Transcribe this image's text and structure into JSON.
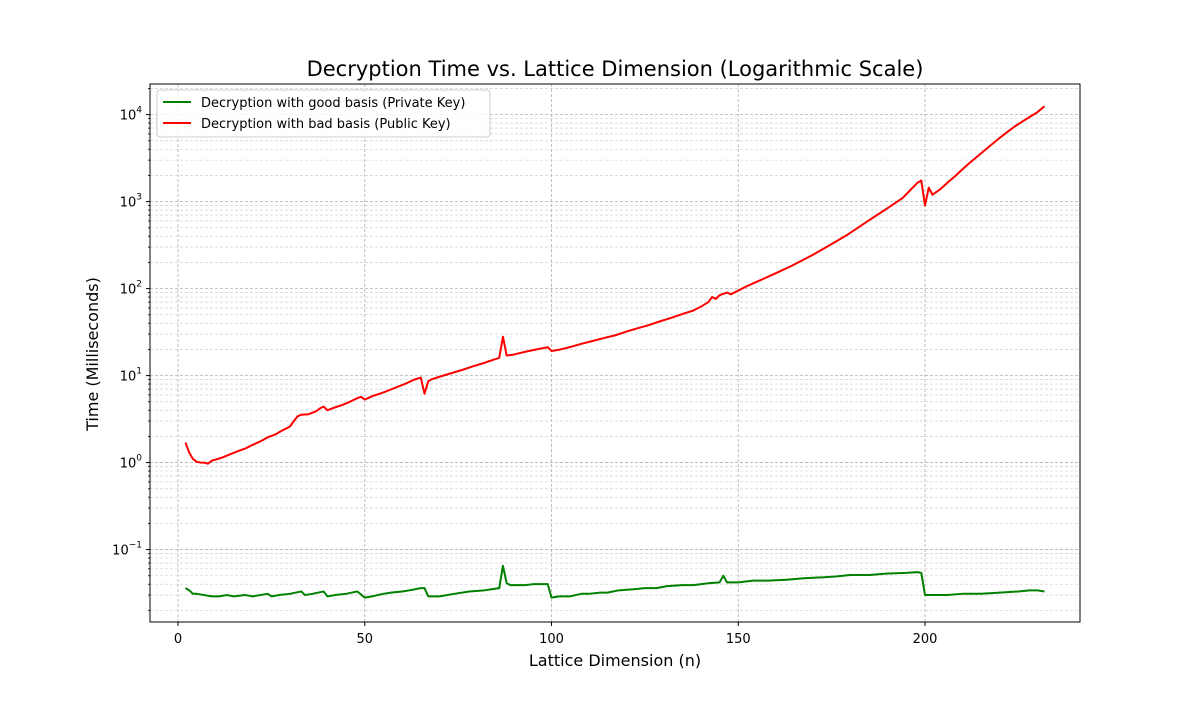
{
  "chart_data": {
    "type": "line",
    "title": "Decryption Time vs. Lattice Dimension (Logarithmic Scale)",
    "xlabel": "Lattice Dimension (n)",
    "ylabel": "Time (Milliseconds)",
    "xscale": "linear",
    "yscale": "log",
    "xlim": [
      -7.5,
      241.5
    ],
    "ylim": [
      0.0147,
      22500
    ],
    "xticks": [
      0,
      50,
      100,
      150,
      200
    ],
    "yticks": [
      {
        "value": 0.1,
        "base": "10",
        "exp": "−1"
      },
      {
        "value": 1,
        "base": "10",
        "exp": "0"
      },
      {
        "value": 10,
        "base": "10",
        "exp": "1"
      },
      {
        "value": 100,
        "base": "10",
        "exp": "2"
      },
      {
        "value": 1000,
        "base": "10",
        "exp": "3"
      },
      {
        "value": 10000,
        "base": "10",
        "exp": "4"
      }
    ],
    "grid": true,
    "legend_position": "upper-left",
    "series": [
      {
        "name": "Decryption with good basis (Private Key)",
        "color": "#008000",
        "points": [
          [
            2,
            0.036
          ],
          [
            3,
            0.034
          ],
          [
            4,
            0.031
          ],
          [
            5,
            0.031
          ],
          [
            7,
            0.03
          ],
          [
            9,
            0.029
          ],
          [
            11,
            0.029
          ],
          [
            13,
            0.03
          ],
          [
            15,
            0.029
          ],
          [
            18,
            0.03
          ],
          [
            20,
            0.029
          ],
          [
            22,
            0.03
          ],
          [
            24,
            0.031
          ],
          [
            25,
            0.029
          ],
          [
            27,
            0.03
          ],
          [
            30,
            0.031
          ],
          [
            33,
            0.033
          ],
          [
            34,
            0.03
          ],
          [
            36,
            0.031
          ],
          [
            39,
            0.033
          ],
          [
            40,
            0.029
          ],
          [
            42,
            0.03
          ],
          [
            45,
            0.031
          ],
          [
            48,
            0.033
          ],
          [
            50,
            0.028
          ],
          [
            52,
            0.029
          ],
          [
            55,
            0.031
          ],
          [
            57,
            0.032
          ],
          [
            60,
            0.033
          ],
          [
            62,
            0.034
          ],
          [
            65,
            0.036
          ],
          [
            66,
            0.036
          ],
          [
            67,
            0.029
          ],
          [
            70,
            0.029
          ],
          [
            74,
            0.031
          ],
          [
            78,
            0.033
          ],
          [
            82,
            0.034
          ],
          [
            84,
            0.035
          ],
          [
            86,
            0.036
          ],
          [
            87,
            0.065
          ],
          [
            88,
            0.041
          ],
          [
            89,
            0.039
          ],
          [
            91,
            0.039
          ],
          [
            93,
            0.039
          ],
          [
            95,
            0.04
          ],
          [
            98,
            0.04
          ],
          [
            99,
            0.04
          ],
          [
            100,
            0.028
          ],
          [
            102,
            0.029
          ],
          [
            105,
            0.029
          ],
          [
            108,
            0.031
          ],
          [
            110,
            0.031
          ],
          [
            113,
            0.032
          ],
          [
            115,
            0.032
          ],
          [
            118,
            0.034
          ],
          [
            122,
            0.035
          ],
          [
            125,
            0.036
          ],
          [
            128,
            0.036
          ],
          [
            131,
            0.038
          ],
          [
            135,
            0.039
          ],
          [
            138,
            0.039
          ],
          [
            142,
            0.041
          ],
          [
            145,
            0.042
          ],
          [
            146,
            0.05
          ],
          [
            147,
            0.042
          ],
          [
            150,
            0.042
          ],
          [
            154,
            0.044
          ],
          [
            158,
            0.044
          ],
          [
            163,
            0.045
          ],
          [
            168,
            0.047
          ],
          [
            173,
            0.048
          ],
          [
            176,
            0.049
          ],
          [
            180,
            0.051
          ],
          [
            185,
            0.051
          ],
          [
            190,
            0.053
          ],
          [
            195,
            0.054
          ],
          [
            198,
            0.055
          ],
          [
            199,
            0.054
          ],
          [
            200,
            0.03
          ],
          [
            203,
            0.03
          ],
          [
            206,
            0.03
          ],
          [
            210,
            0.031
          ],
          [
            215,
            0.031
          ],
          [
            220,
            0.032
          ],
          [
            225,
            0.033
          ],
          [
            228,
            0.034
          ],
          [
            230,
            0.034
          ],
          [
            232,
            0.033
          ]
        ]
      },
      {
        "name": "Decryption with bad basis (Public Key)",
        "color": "#ff0000",
        "points": [
          [
            2,
            1.7
          ],
          [
            3,
            1.3
          ],
          [
            4,
            1.1
          ],
          [
            5,
            1.02
          ],
          [
            6,
            1.0
          ],
          [
            7,
            1.0
          ],
          [
            8,
            0.97
          ],
          [
            9,
            1.05
          ],
          [
            10,
            1.08
          ],
          [
            12,
            1.15
          ],
          [
            14,
            1.25
          ],
          [
            16,
            1.35
          ],
          [
            18,
            1.45
          ],
          [
            20,
            1.6
          ],
          [
            22,
            1.75
          ],
          [
            24,
            1.95
          ],
          [
            26,
            2.1
          ],
          [
            28,
            2.35
          ],
          [
            30,
            2.6
          ],
          [
            31,
            3.0
          ],
          [
            32,
            3.4
          ],
          [
            33,
            3.55
          ],
          [
            35,
            3.6
          ],
          [
            37,
            3.9
          ],
          [
            38,
            4.2
          ],
          [
            39,
            4.4
          ],
          [
            40,
            4.0
          ],
          [
            42,
            4.3
          ],
          [
            44,
            4.6
          ],
          [
            46,
            5.0
          ],
          [
            48,
            5.5
          ],
          [
            49,
            5.7
          ],
          [
            50,
            5.3
          ],
          [
            52,
            5.8
          ],
          [
            55,
            6.4
          ],
          [
            58,
            7.2
          ],
          [
            61,
            8.1
          ],
          [
            63,
            8.9
          ],
          [
            65,
            9.5
          ],
          [
            66,
            6.2
          ],
          [
            67,
            8.6
          ],
          [
            68,
            9.1
          ],
          [
            70,
            9.7
          ],
          [
            73,
            10.6
          ],
          [
            76,
            11.6
          ],
          [
            79,
            12.8
          ],
          [
            82,
            14.0
          ],
          [
            84,
            15.0
          ],
          [
            85,
            15.5
          ],
          [
            86,
            16.0
          ],
          [
            87,
            28.0
          ],
          [
            88,
            17.0
          ],
          [
            90,
            17.5
          ],
          [
            93,
            18.8
          ],
          [
            96,
            20.0
          ],
          [
            99,
            21.2
          ],
          [
            100,
            19.2
          ],
          [
            102,
            19.8
          ],
          [
            105,
            21.3
          ],
          [
            108,
            23.2
          ],
          [
            111,
            25.0
          ],
          [
            114,
            27.0
          ],
          [
            117,
            29.0
          ],
          [
            120,
            32.0
          ],
          [
            123,
            35.0
          ],
          [
            126,
            38.0
          ],
          [
            129,
            42.0
          ],
          [
            132,
            46.0
          ],
          [
            135,
            51.0
          ],
          [
            138,
            56.0
          ],
          [
            140,
            62.0
          ],
          [
            142,
            70.0
          ],
          [
            143,
            80.0
          ],
          [
            144,
            76.0
          ],
          [
            145,
            84.0
          ],
          [
            147,
            90.0
          ],
          [
            148,
            86.0
          ],
          [
            150,
            95.0
          ],
          [
            152,
            105.0
          ],
          [
            155,
            120.0
          ],
          [
            158,
            137.0
          ],
          [
            161,
            157.0
          ],
          [
            164,
            180.0
          ],
          [
            167,
            210.0
          ],
          [
            170,
            245.0
          ],
          [
            173,
            290.0
          ],
          [
            176,
            345.0
          ],
          [
            179,
            410.0
          ],
          [
            182,
            500.0
          ],
          [
            185,
            610.0
          ],
          [
            188,
            740.0
          ],
          [
            191,
            900.0
          ],
          [
            194,
            1100.0
          ],
          [
            196,
            1350.0
          ],
          [
            198,
            1650.0
          ],
          [
            199,
            1750.0
          ],
          [
            200,
            900.0
          ],
          [
            201,
            1450.0
          ],
          [
            202,
            1200.0
          ],
          [
            204,
            1380.0
          ],
          [
            206,
            1650.0
          ],
          [
            208,
            1950.0
          ],
          [
            210,
            2350.0
          ],
          [
            212,
            2800.0
          ],
          [
            214,
            3300.0
          ],
          [
            216,
            3900.0
          ],
          [
            218,
            4600.0
          ],
          [
            220,
            5400.0
          ],
          [
            222,
            6300.0
          ],
          [
            224,
            7300.0
          ],
          [
            226,
            8300.0
          ],
          [
            228,
            9400.0
          ],
          [
            230,
            10600.0
          ],
          [
            232,
            12500.0
          ]
        ]
      }
    ]
  }
}
